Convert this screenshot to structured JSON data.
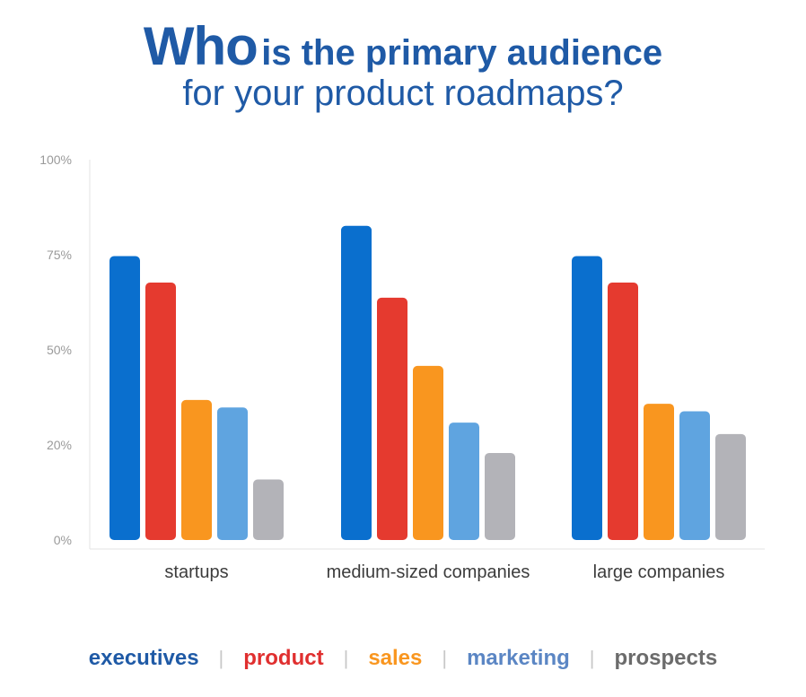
{
  "title": {
    "emphasis": "Who",
    "rest": "is the primary audience",
    "line2": "for your product roadmaps?"
  },
  "chart_data": {
    "type": "bar",
    "categories": [
      "startups",
      "medium-sized companies",
      "large companies"
    ],
    "series": [
      {
        "name": "executives",
        "color": "#0a6fce",
        "values": [
          75,
          83,
          75
        ]
      },
      {
        "name": "product",
        "color": "#e53a2f",
        "values": [
          68,
          64,
          68
        ]
      },
      {
        "name": "sales",
        "color": "#f9961f",
        "values": [
          37,
          46,
          36
        ]
      },
      {
        "name": "marketing",
        "color": "#5fa4e0",
        "values": [
          35,
          31,
          34
        ]
      },
      {
        "name": "prospects",
        "color": "#b3b3b8",
        "values": [
          16,
          23,
          28
        ]
      }
    ],
    "ylim": [
      0,
      100
    ],
    "yticks": [
      "0%",
      "20%",
      "50%",
      "75%",
      "100%"
    ],
    "legend_position": "bottom",
    "grid": false
  },
  "legend_colors": [
    "#1f5aa6",
    "#e02f2f",
    "#f9961f",
    "#5b86c4",
    "#6b6b6b"
  ]
}
